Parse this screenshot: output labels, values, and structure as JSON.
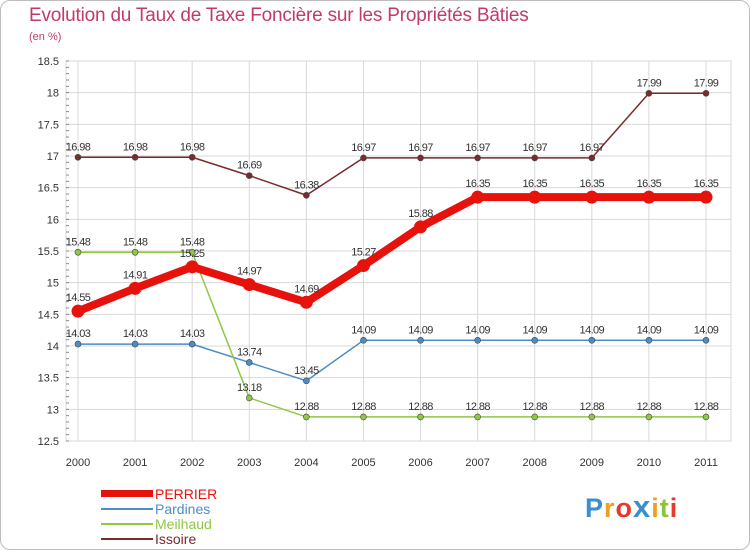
{
  "header": {
    "title": "Evolution du Taux de Taxe Foncière sur les Propriétés Bâties",
    "subtitle": "(en %)"
  },
  "logo": {
    "letters": [
      "P",
      "r",
      "o",
      "x",
      "i",
      "t",
      "i"
    ],
    "colors": [
      "#3a8fd0",
      "#f0a020",
      "#e83a2a",
      "#3a8fd0",
      "#f0a020",
      "#8ac43a",
      "#e83a2a"
    ]
  },
  "chart_data": {
    "type": "line",
    "title": "Evolution du Taux de Taxe Foncière sur les Propriétés Bâties",
    "ylabel": "(en %)",
    "xlabel": "",
    "x": [
      "2000",
      "2001",
      "2002",
      "2003",
      "2004",
      "2005",
      "2006",
      "2007",
      "2008",
      "2009",
      "2010",
      "2011"
    ],
    "ylim": [
      12.5,
      18.5
    ],
    "yticks": [
      "12.5",
      "13",
      "13.5",
      "14",
      "14.5",
      "15",
      "15.5",
      "16",
      "16.5",
      "17",
      "17.5",
      "18",
      "18.5"
    ],
    "legend_position": "bottom-left",
    "series": [
      {
        "name": "PERRIER",
        "color": "#e8120c",
        "emphasis": true,
        "values": [
          14.55,
          14.91,
          15.25,
          14.97,
          14.69,
          15.27,
          15.88,
          16.35,
          16.35,
          16.35,
          16.35,
          16.35
        ],
        "labels": [
          "14.55",
          "14.91",
          "15.25",
          "14.97",
          "14.69",
          "15.27",
          "15.88",
          "16.35",
          "16.35",
          "16.35",
          "16.35",
          "16.35"
        ]
      },
      {
        "name": "Pardines",
        "color": "#4d8cc4",
        "emphasis": false,
        "values": [
          14.03,
          14.03,
          14.03,
          13.74,
          13.45,
          14.09,
          14.09,
          14.09,
          14.09,
          14.09,
          14.09,
          14.09
        ],
        "labels": [
          "14.03",
          "14.03",
          "14.03",
          "13.74",
          "13.45",
          "14.09",
          "14.09",
          "14.09",
          "14.09",
          "14.09",
          "14.09",
          "14.09"
        ]
      },
      {
        "name": "Meilhaud",
        "color": "#8ec845",
        "emphasis": false,
        "values": [
          15.48,
          15.48,
          15.48,
          13.18,
          12.88,
          12.88,
          12.88,
          12.88,
          12.88,
          12.88,
          12.88,
          12.88
        ],
        "labels": [
          "15.48",
          "15.48",
          "15.48",
          "13.18",
          "12.88",
          "12.88",
          "12.88",
          "12.88",
          "12.88",
          "12.88",
          "12.88",
          "12.88"
        ]
      },
      {
        "name": "Issoire",
        "color": "#7b2a2e",
        "emphasis": false,
        "values": [
          16.98,
          16.98,
          16.98,
          16.69,
          16.38,
          16.97,
          16.97,
          16.97,
          16.97,
          16.97,
          17.99,
          17.99
        ],
        "labels": [
          "16.98",
          "16.98",
          "16.98",
          "16.69",
          "16.38",
          "16.97",
          "16.97",
          "16.97",
          "16.97",
          "16.97",
          "17.99",
          "17.99"
        ]
      }
    ]
  }
}
